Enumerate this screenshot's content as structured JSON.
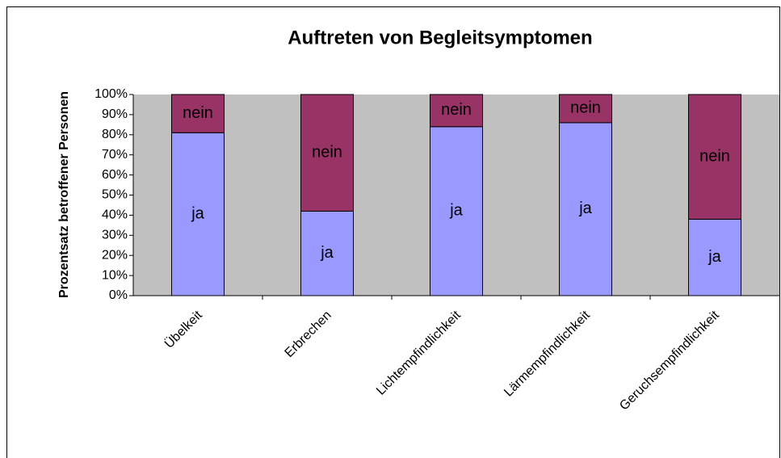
{
  "chart_data": {
    "type": "bar",
    "stacked": true,
    "title": "Auftreten von Begleitsymptomen",
    "y_label": "Prozentsatz betroffener Personen",
    "categories": [
      "Übelkeit",
      "Erbrechen",
      "Lichtempfindlichkeit",
      "Lärmempfindlichkeit",
      "Geruchsempfindlichkeit"
    ],
    "series": [
      {
        "name": "ja",
        "color": "#9999ff",
        "values": [
          81,
          42,
          84,
          86,
          38
        ]
      },
      {
        "name": "nein",
        "color": "#993366",
        "values": [
          19,
          58,
          16,
          14,
          62
        ]
      }
    ],
    "ylim": [
      0,
      100
    ],
    "yticks": [
      {
        "value": 0,
        "label": "0%"
      },
      {
        "value": 10,
        "label": "10%"
      },
      {
        "value": 20,
        "label": "20%"
      },
      {
        "value": 30,
        "label": "30%"
      },
      {
        "value": 40,
        "label": "40%"
      },
      {
        "value": 50,
        "label": "50%"
      },
      {
        "value": 60,
        "label": "60%"
      },
      {
        "value": 70,
        "label": "70%"
      },
      {
        "value": 80,
        "label": "80%"
      },
      {
        "value": 90,
        "label": "90%"
      },
      {
        "value": 100,
        "label": "100%"
      }
    ],
    "plot_background": "#c0c0c0"
  }
}
